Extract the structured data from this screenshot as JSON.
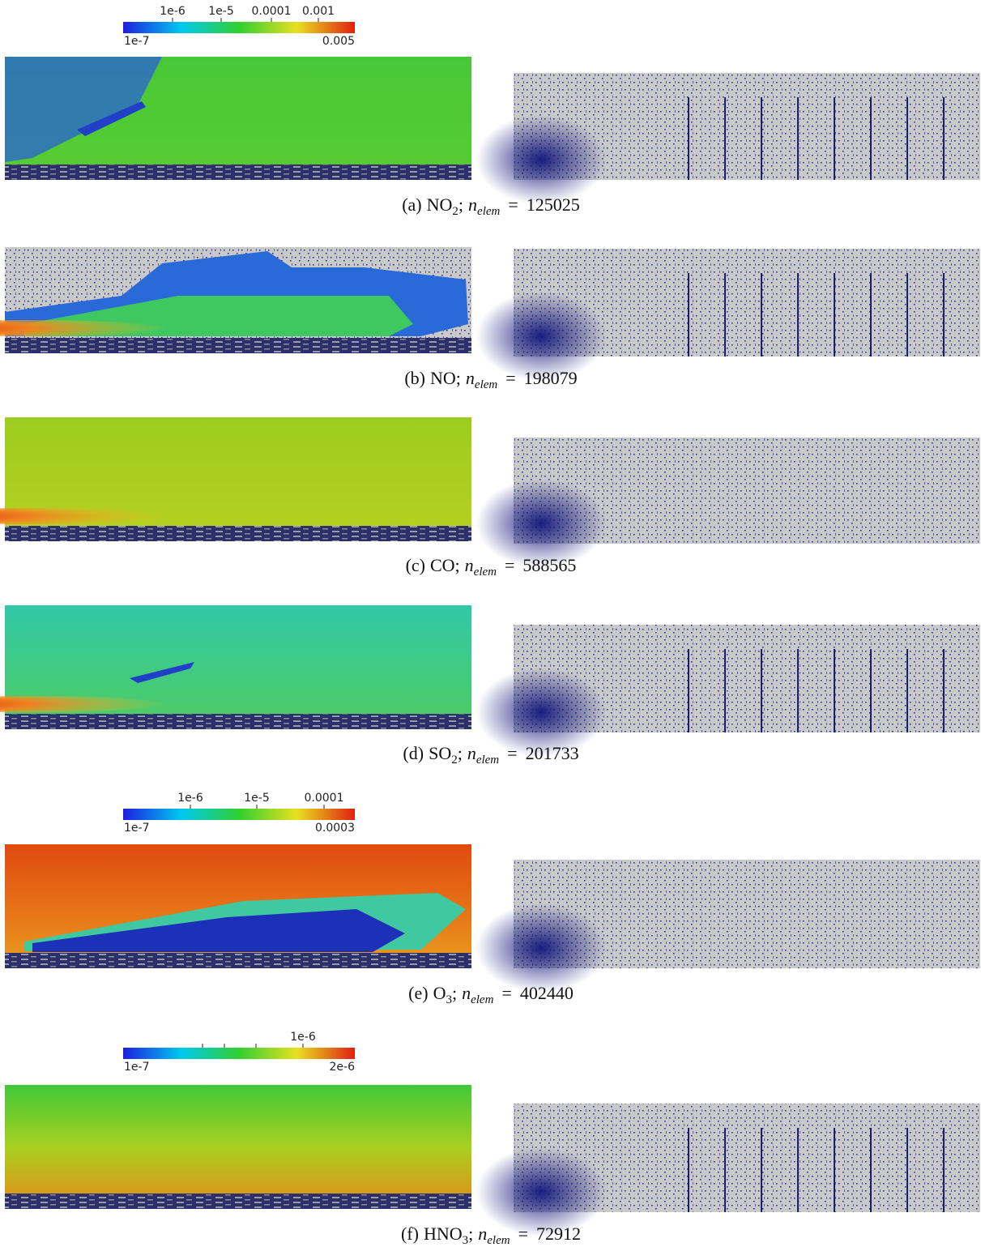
{
  "colorbars": [
    {
      "ticks_above": [
        "1e-6",
        "1e-5",
        "0.0001",
        "0.001"
      ],
      "min": "1e-7",
      "max": "0.005"
    },
    {
      "ticks_above": [
        "1e-6",
        "1e-5",
        "0.0001"
      ],
      "min": "1e-7",
      "max": "0.0003"
    },
    {
      "ticks_above": [
        "1e-6"
      ],
      "min": "1e-7",
      "max": "2e-6"
    }
  ],
  "caption_format": {
    "separator": ";",
    "n_symbol": "n",
    "n_sub": "elem",
    "equals": "="
  },
  "panels": [
    {
      "label": "(a)",
      "species": "NO",
      "sub": "2",
      "n_elem": 125025
    },
    {
      "label": "(b)",
      "species": "NO",
      "n_elem": 198079
    },
    {
      "label": "(c)",
      "species": "CO",
      "n_elem": 588565
    },
    {
      "label": "(d)",
      "species": "SO",
      "sub": "2",
      "n_elem": 201733
    },
    {
      "label": "(e)",
      "species": "O",
      "sub": "3",
      "n_elem": 402440
    },
    {
      "label": "(f)",
      "species": "HNO",
      "sub": "3",
      "n_elem": 72912
    }
  ]
}
